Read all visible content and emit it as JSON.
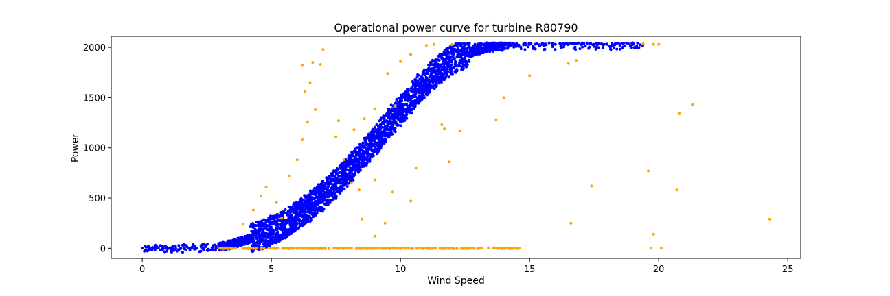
{
  "chart_data": {
    "type": "scatter",
    "title": "Operational power curve for turbine R80790",
    "xlabel": "Wind Speed",
    "ylabel": "Power",
    "xlim": [
      -1.2,
      25.5
    ],
    "ylim": [
      -100,
      2110
    ],
    "xticks": [
      0,
      5,
      10,
      15,
      20,
      25
    ],
    "yticks": [
      0,
      500,
      1000,
      1500,
      2000
    ],
    "grid": false,
    "series": [
      {
        "role": "normal",
        "color": "#0000ff",
        "description_points": "dense band along power curve",
        "points": [
          [
            0.0,
            0
          ],
          [
            0.3,
            -2
          ],
          [
            0.6,
            0
          ],
          [
            0.9,
            -1
          ],
          [
            1.2,
            0
          ],
          [
            1.5,
            -2
          ],
          [
            1.8,
            0
          ],
          [
            2.1,
            1
          ],
          [
            2.4,
            3
          ],
          [
            2.7,
            8
          ],
          [
            3.0,
            15
          ],
          [
            3.2,
            25
          ],
          [
            3.4,
            35
          ],
          [
            3.6,
            50
          ],
          [
            3.8,
            65
          ],
          [
            4.0,
            80
          ],
          [
            4.2,
            95
          ],
          [
            4.4,
            115
          ],
          [
            4.6,
            130
          ],
          [
            4.8,
            150
          ],
          [
            5.0,
            175
          ],
          [
            5.2,
            200
          ],
          [
            5.4,
            225
          ],
          [
            5.6,
            255
          ],
          [
            5.8,
            290
          ],
          [
            6.0,
            320
          ],
          [
            6.2,
            360
          ],
          [
            6.4,
            400
          ],
          [
            6.6,
            440
          ],
          [
            6.8,
            480
          ],
          [
            7.0,
            525
          ],
          [
            7.2,
            570
          ],
          [
            7.4,
            620
          ],
          [
            7.6,
            670
          ],
          [
            7.8,
            720
          ],
          [
            8.0,
            780
          ],
          [
            8.2,
            835
          ],
          [
            8.4,
            890
          ],
          [
            8.6,
            950
          ],
          [
            8.8,
            1010
          ],
          [
            9.0,
            1070
          ],
          [
            9.2,
            1130
          ],
          [
            9.4,
            1190
          ],
          [
            9.6,
            1250
          ],
          [
            9.8,
            1310
          ],
          [
            10.0,
            1370
          ],
          [
            10.2,
            1430
          ],
          [
            10.4,
            1490
          ],
          [
            10.6,
            1550
          ],
          [
            10.8,
            1610
          ],
          [
            11.0,
            1660
          ],
          [
            11.2,
            1710
          ],
          [
            11.4,
            1760
          ],
          [
            11.6,
            1800
          ],
          [
            11.8,
            1840
          ],
          [
            12.0,
            1875
          ],
          [
            12.3,
            1910
          ],
          [
            12.6,
            1945
          ],
          [
            12.9,
            1975
          ],
          [
            13.2,
            1995
          ],
          [
            13.5,
            2010
          ],
          [
            13.8,
            2020
          ],
          [
            14.1,
            2025
          ],
          [
            14.5,
            2030
          ],
          [
            15.0,
            2030
          ],
          [
            15.5,
            2028
          ],
          [
            16.0,
            2030
          ],
          [
            16.5,
            2032
          ],
          [
            17.0,
            2030
          ],
          [
            17.5,
            2031
          ],
          [
            18.0,
            2030
          ],
          [
            18.5,
            2032
          ],
          [
            19.0,
            2030
          ],
          [
            19.4,
            2033
          ]
        ]
      },
      {
        "role": "outlier",
        "color": "#ffa500",
        "points": [
          [
            3.1,
            0
          ],
          [
            4.0,
            0
          ],
          [
            5.0,
            0
          ],
          [
            6.0,
            0
          ],
          [
            7.0,
            0
          ],
          [
            8.0,
            0
          ],
          [
            9.0,
            0
          ],
          [
            10.0,
            0
          ],
          [
            11.0,
            0
          ],
          [
            12.0,
            0
          ],
          [
            13.0,
            0
          ],
          [
            13.8,
            0
          ],
          [
            14.6,
            0
          ],
          [
            3.9,
            240
          ],
          [
            4.3,
            380
          ],
          [
            4.6,
            520
          ],
          [
            4.8,
            610
          ],
          [
            5.2,
            460
          ],
          [
            5.4,
            300
          ],
          [
            5.7,
            720
          ],
          [
            6.0,
            880
          ],
          [
            6.2,
            1080
          ],
          [
            6.4,
            1260
          ],
          [
            6.7,
            1380
          ],
          [
            6.5,
            1650
          ],
          [
            6.3,
            1560
          ],
          [
            6.9,
            1830
          ],
          [
            6.6,
            1850
          ],
          [
            6.2,
            1820
          ],
          [
            7.0,
            1980
          ],
          [
            7.6,
            1270
          ],
          [
            8.2,
            1180
          ],
          [
            8.6,
            1290
          ],
          [
            9.0,
            1390
          ],
          [
            7.5,
            1110
          ],
          [
            7.8,
            880
          ],
          [
            9.5,
            1740
          ],
          [
            10.0,
            1860
          ],
          [
            10.4,
            1930
          ],
          [
            11.0,
            2020
          ],
          [
            11.3,
            2030
          ],
          [
            12.0,
            2030
          ],
          [
            9.8,
            1420
          ],
          [
            11.6,
            1230
          ],
          [
            11.7,
            1190
          ],
          [
            12.3,
            1170
          ],
          [
            11.9,
            860
          ],
          [
            10.6,
            800
          ],
          [
            9.7,
            560
          ],
          [
            10.4,
            470
          ],
          [
            8.5,
            290
          ],
          [
            9.0,
            120
          ],
          [
            9.4,
            250
          ],
          [
            9.0,
            680
          ],
          [
            8.1,
            650
          ],
          [
            8.4,
            580
          ],
          [
            13.7,
            1280
          ],
          [
            14.0,
            1500
          ],
          [
            15.0,
            1720
          ],
          [
            16.5,
            1840
          ],
          [
            16.8,
            1870
          ],
          [
            19.8,
            2030
          ],
          [
            20.0,
            2030
          ],
          [
            21.3,
            1430
          ],
          [
            20.8,
            1340
          ],
          [
            19.6,
            770
          ],
          [
            17.4,
            620
          ],
          [
            20.7,
            580
          ],
          [
            16.6,
            250
          ],
          [
            24.3,
            290
          ],
          [
            19.8,
            140
          ],
          [
            19.7,
            0
          ],
          [
            20.1,
            0
          ],
          [
            19.4,
            2035
          ]
        ]
      }
    ]
  }
}
